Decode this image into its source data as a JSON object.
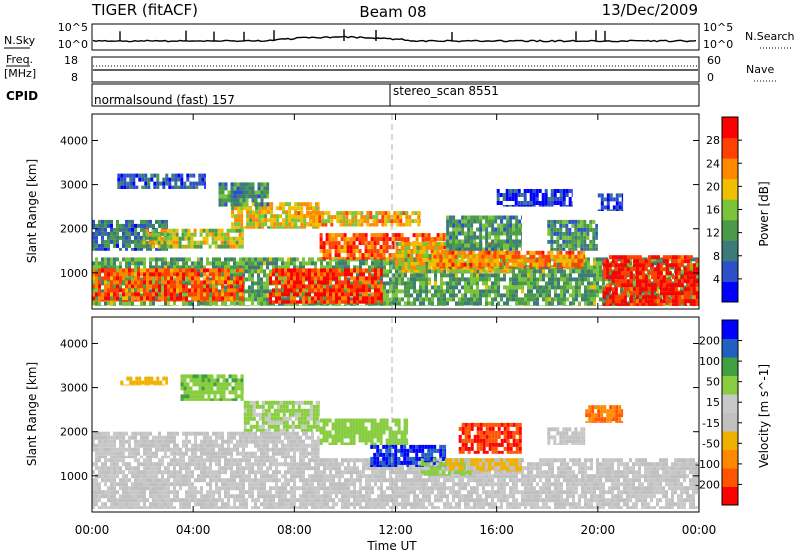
{
  "header": {
    "title_left": "TIGER (fitACF)",
    "title_center": "Beam 08",
    "title_right": "13/Dec/2009"
  },
  "summary": {
    "nsky_label": "N.Sky",
    "nsearch_label": "N.Search",
    "nsky_ticks": [
      "10^5",
      "10^0"
    ],
    "nsearch_ticks": [
      "10^5",
      "10^0"
    ],
    "freq_label": "Freq.",
    "freq_unit": "[MHz]",
    "freq_ticks": [
      "18",
      "8"
    ],
    "nave_label": "Nave",
    "nave_ticks": [
      "60",
      "0"
    ],
    "cpid_label": "CPID",
    "cpid_segments": [
      {
        "start_hour": 0.0,
        "label": "normalsound (fast) 157"
      },
      {
        "start_hour": 12.0,
        "label": "stereo_scan 8551"
      }
    ]
  },
  "chart_data": [
    {
      "type": "heatmap",
      "panel": "power",
      "ylabel": "Slant Range [km]",
      "ylim": [
        180,
        4600
      ],
      "yticks": [
        1000,
        2000,
        3000,
        4000
      ],
      "xlim": [
        0,
        24
      ],
      "x_marker_hour": 12,
      "colorbar": {
        "label": "Power [dB]",
        "ticks": [
          "28",
          "24",
          "20",
          "16",
          "12",
          "8",
          "4"
        ],
        "colors": [
          "#0000ff",
          "#2b50c8",
          "#3d7a7a",
          "#4a9a4a",
          "#7ac43a",
          "#f0c000",
          "#ff8800",
          "#ff4000",
          "#ff0000"
        ]
      },
      "regions": [
        {
          "x": [
            0.0,
            24.0
          ],
          "y": [
            250,
            1350
          ],
          "value": 14
        },
        {
          "x": [
            0.0,
            6.0
          ],
          "y": [
            350,
            1100
          ],
          "value": 26
        },
        {
          "x": [
            7.0,
            11.5
          ],
          "y": [
            300,
            1100
          ],
          "value": 28
        },
        {
          "x": [
            9.0,
            14.0
          ],
          "y": [
            1300,
            1900
          ],
          "value": 26
        },
        {
          "x": [
            0.0,
            3.0
          ],
          "y": [
            1500,
            2200
          ],
          "value": 10
        },
        {
          "x": [
            2.0,
            6.0
          ],
          "y": [
            1550,
            2000
          ],
          "value": 18
        },
        {
          "x": [
            5.5,
            9.0
          ],
          "y": [
            2000,
            2600
          ],
          "value": 20
        },
        {
          "x": [
            8.0,
            13.0
          ],
          "y": [
            2050,
            2400
          ],
          "value": 22
        },
        {
          "x": [
            1.0,
            4.5
          ],
          "y": [
            2900,
            3250
          ],
          "value": 8
        },
        {
          "x": [
            5.0,
            7.0
          ],
          "y": [
            2500,
            3050
          ],
          "value": 12
        },
        {
          "x": [
            12.0,
            16.5
          ],
          "y": [
            1000,
            1700
          ],
          "value": 20
        },
        {
          "x": [
            13.5,
            19.5
          ],
          "y": [
            1100,
            1500
          ],
          "value": 24
        },
        {
          "x": [
            14.0,
            17.0
          ],
          "y": [
            1500,
            2300
          ],
          "value": 13
        },
        {
          "x": [
            18.0,
            20.0
          ],
          "y": [
            1500,
            2200
          ],
          "value": 12
        },
        {
          "x": [
            20.2,
            24.0
          ],
          "y": [
            250,
            1400
          ],
          "value": 30
        },
        {
          "x": [
            16.0,
            19.0
          ],
          "y": [
            2500,
            2900
          ],
          "value": 6
        },
        {
          "x": [
            20.0,
            21.0
          ],
          "y": [
            2400,
            2800
          ],
          "value": 6
        }
      ]
    },
    {
      "type": "heatmap",
      "panel": "velocity",
      "ylabel": "Slant Range [km]",
      "ylim": [
        180,
        4600
      ],
      "yticks": [
        1000,
        2000,
        3000,
        4000
      ],
      "xlim": [
        0,
        24
      ],
      "x_marker_hour": 12,
      "xticks": [
        "00:00",
        "04:00",
        "08:00",
        "12:00",
        "16:00",
        "20:00",
        "00:00"
      ],
      "xlabel": "Time UT",
      "colorbar": {
        "label": "Velocity [m s^-1]",
        "ticks": [
          "200",
          "100",
          "50",
          "15",
          "-15",
          "-50",
          "-100",
          "-200"
        ],
        "colors": [
          "#ff0000",
          "#ff5500",
          "#ff8800",
          "#f0b000",
          "#c0c0c0",
          "#c8c8c8",
          "#88cc40",
          "#40a040",
          "#2060c0",
          "#0000ff"
        ]
      },
      "regions": [
        {
          "x": [
            0.0,
            24.0
          ],
          "y": [
            250,
            1400
          ],
          "value": 0
        },
        {
          "x": [
            0.0,
            9.0
          ],
          "y": [
            1400,
            2000
          ],
          "value": 0
        },
        {
          "x": [
            3.5,
            6.0
          ],
          "y": [
            2700,
            3300
          ],
          "value": 90
        },
        {
          "x": [
            6.0,
            9.0
          ],
          "y": [
            2000,
            2700
          ],
          "value": 60
        },
        {
          "x": [
            9.0,
            12.5
          ],
          "y": [
            1700,
            2300
          ],
          "value": 80
        },
        {
          "x": [
            11.0,
            14.0
          ],
          "y": [
            1200,
            1700
          ],
          "value": 200
        },
        {
          "x": [
            13.0,
            15.0
          ],
          "y": [
            1000,
            1400
          ],
          "value": 60
        },
        {
          "x": [
            14.0,
            17.0
          ],
          "y": [
            1100,
            1400
          ],
          "value": -60
        },
        {
          "x": [
            14.5,
            17.0
          ],
          "y": [
            1500,
            2200
          ],
          "value": -200
        },
        {
          "x": [
            1.0,
            3.0
          ],
          "y": [
            3050,
            3250
          ],
          "value": -80
        },
        {
          "x": [
            18.0,
            19.5
          ],
          "y": [
            1700,
            2100
          ],
          "value": 0
        },
        {
          "x": [
            19.5,
            21.0
          ],
          "y": [
            2200,
            2600
          ],
          "value": -150
        }
      ]
    }
  ]
}
